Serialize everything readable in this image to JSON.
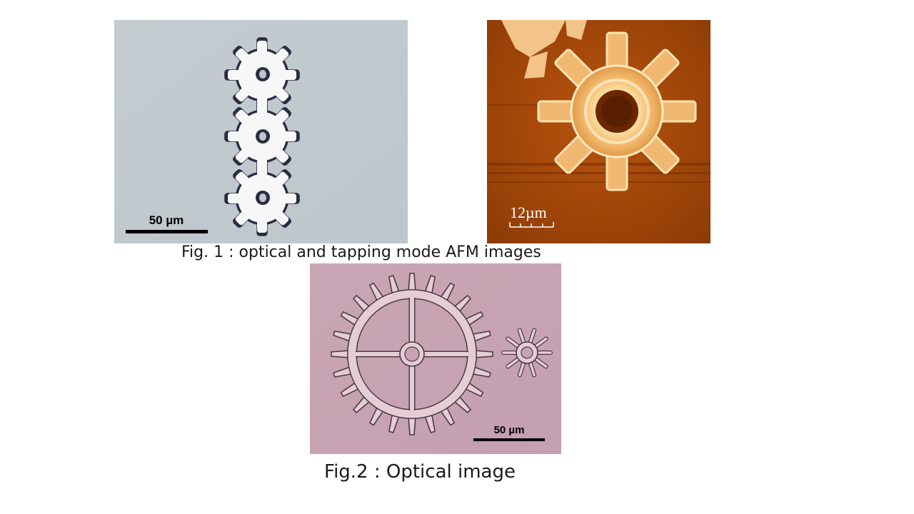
{
  "figure1": {
    "caption": "Fig. 1 : optical and tapping mode AFM images",
    "optical": {
      "scale_label": "50 µm"
    },
    "afm": {
      "scale_label": "12µm"
    }
  },
  "figure2": {
    "caption": "Fig.2 : Optical image",
    "optical": {
      "scale_label": "50 µm"
    }
  }
}
